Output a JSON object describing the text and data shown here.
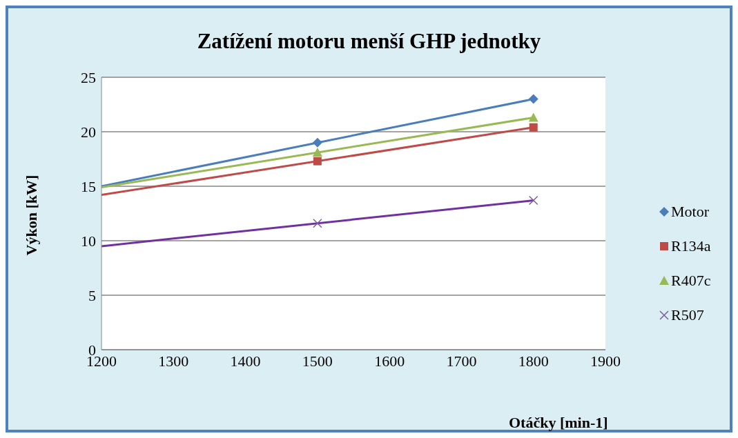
{
  "chart_data": {
    "type": "scatter",
    "title": "Zatížení motoru menší GHP jednotky",
    "xlabel": "Otáčky [min-1]",
    "ylabel": "Výkon [kW]",
    "xlim": [
      1200,
      1900
    ],
    "xticks": [
      1200,
      1300,
      1400,
      1500,
      1600,
      1700,
      1800,
      1900
    ],
    "ylim": [
      0,
      25
    ],
    "yticks": [
      0,
      5,
      10,
      15,
      20,
      25
    ],
    "grid": "y",
    "legend": "right",
    "series": [
      {
        "name": "Motor",
        "color": "#4a7ebb",
        "marker": "diamond",
        "x": [
          1500,
          1800
        ],
        "values": [
          19,
          23
        ]
      },
      {
        "name": "R134a",
        "color": "#be4b48",
        "marker": "square",
        "x": [
          1500,
          1800
        ],
        "values": [
          17.3,
          20.4
        ]
      },
      {
        "name": "R407c",
        "color": "#98b954",
        "marker": "triangle",
        "x": [
          1500,
          1800
        ],
        "values": [
          18.1,
          21.3
        ]
      },
      {
        "name": "R507",
        "color": "#7d60a0",
        "marker": "cross",
        "x": [
          1500,
          1800
        ],
        "values": [
          11.6,
          13.7
        ]
      },
      {
        "type": "line",
        "color": "#4a7ebb",
        "marker": "none",
        "x": [
          1200,
          1800
        ],
        "values": [
          15,
          23
        ]
      },
      {
        "type": "line",
        "color": "#be4b48",
        "marker": "none",
        "x": [
          1200,
          1800
        ],
        "values": [
          14.2,
          20.4
        ]
      },
      {
        "type": "line",
        "color": "#98b954",
        "marker": "none",
        "x": [
          1200,
          1800
        ],
        "values": [
          14.9,
          21.3
        ]
      },
      {
        "type": "line",
        "color": "#7030a0",
        "marker": "none",
        "x": [
          1200,
          1800
        ],
        "values": [
          9.5,
          13.7
        ]
      }
    ]
  }
}
